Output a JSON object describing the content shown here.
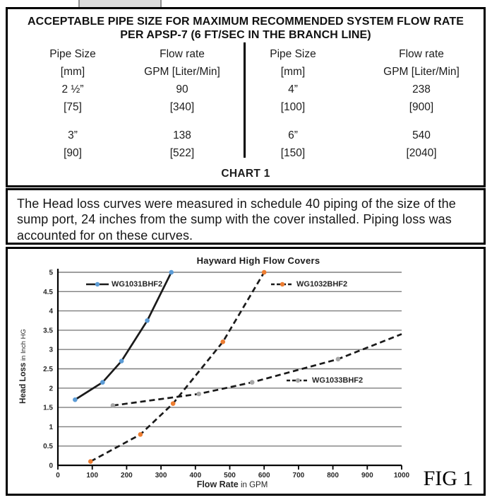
{
  "table_box": {
    "title_line1": "ACCEPTABLE PIPE SIZE FOR MAXIMUM RECOMMENDED SYSTEM FLOW RATE",
    "title_line2": "PER APSP-7  (6 FT/SEC IN THE BRANCH LINE)",
    "columns": [
      {
        "header": "Pipe Size",
        "subheader": "[mm]"
      },
      {
        "header": "Flow rate",
        "subheader": "GPM [Liter/Min]"
      },
      {
        "header": "Pipe Size",
        "subheader": "[mm]"
      },
      {
        "header": "Flow rate",
        "subheader": "GPM [Liter/Min]"
      }
    ],
    "rows": [
      [
        "2 ½”",
        "90",
        "4”",
        "238"
      ],
      [
        "[75]",
        "[340]",
        "[100]",
        "[900]"
      ],
      [
        "3”",
        "138",
        "6”",
        "540"
      ],
      [
        "[90]",
        "[522]",
        "[150]",
        "[2040]"
      ]
    ],
    "caption": "CHART 1"
  },
  "note_box": {
    "text": "The Head loss curves were measured in schedule 40 piping of the size of the sump port, 24 inches from the sump with the cover installed.  Piping loss was accounted for on these curves."
  },
  "figure": {
    "label": "FIG 1"
  },
  "chart_data": {
    "type": "line",
    "title": "Hayward High Flow Covers",
    "xlabel": "Flow Rate",
    "xlabel_units": "in GPM",
    "ylabel": "Head Loss",
    "ylabel_units": "in Inch HG",
    "xlim": [
      0,
      1000
    ],
    "ylim": [
      0,
      5
    ],
    "x_ticks": [
      0,
      100,
      200,
      300,
      400,
      500,
      600,
      700,
      800,
      900,
      1000
    ],
    "y_ticks": [
      0,
      0.5,
      1,
      1.5,
      2,
      2.5,
      3,
      3.5,
      4,
      4.5,
      5
    ],
    "grid": "horizontal",
    "grid_color": "#7f7f7f",
    "axis_color": "#000000",
    "legend_position": "inside-plot",
    "series": [
      {
        "name": "WG1031BHF2",
        "line_style": "solid",
        "line_color": "#1a1a1a",
        "marker_color": "#5b9bd5",
        "line": [
          [
            50,
            1.7
          ],
          [
            130,
            2.15
          ],
          [
            185,
            2.7
          ],
          [
            260,
            3.75
          ],
          [
            330,
            5.0
          ]
        ],
        "markers": [
          [
            50,
            1.7
          ],
          [
            130,
            2.15
          ],
          [
            185,
            2.7
          ],
          [
            260,
            3.75
          ],
          [
            330,
            5.0
          ]
        ]
      },
      {
        "name": "WG1032BHF2",
        "line_style": "dashed",
        "line_color": "#1a1a1a",
        "marker_color": "#ed7d31",
        "line": [
          [
            95,
            0.1
          ],
          [
            240,
            0.8
          ],
          [
            335,
            1.6
          ],
          [
            480,
            3.2
          ],
          [
            600,
            5.0
          ]
        ],
        "markers": [
          [
            95,
            0.1
          ],
          [
            240,
            0.8
          ],
          [
            335,
            1.6
          ],
          [
            480,
            3.2
          ],
          [
            600,
            5.0
          ]
        ]
      },
      {
        "name": "WG1033BHF2",
        "line_style": "dashed",
        "line_color": "#1a1a1a",
        "marker_color": "#a6a6a6",
        "line": [
          [
            160,
            1.55
          ],
          [
            410,
            1.85
          ],
          [
            565,
            2.15
          ],
          [
            815,
            2.75
          ],
          [
            1000,
            3.4
          ]
        ],
        "markers": [
          [
            160,
            1.55
          ],
          [
            410,
            1.85
          ],
          [
            565,
            2.15
          ],
          [
            815,
            2.75
          ]
        ]
      }
    ]
  }
}
